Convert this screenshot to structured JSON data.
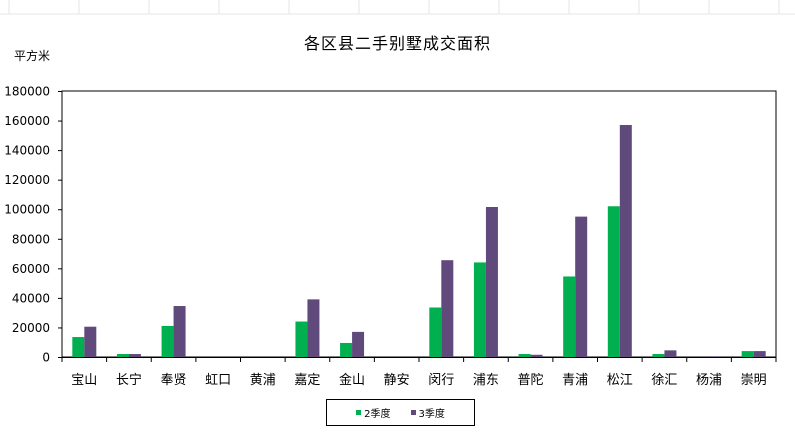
{
  "chart_data": {
    "type": "bar",
    "title": "各区县二手别墅成交面积",
    "ylabel": "平方米",
    "xlabel": "",
    "ylim": [
      0,
      180000
    ],
    "yticks": [
      0,
      20000,
      40000,
      60000,
      80000,
      100000,
      120000,
      140000,
      160000,
      180000
    ],
    "grid": false,
    "legend_position": "bottom",
    "categories": [
      "宝山",
      "长宁",
      "奉贤",
      "虹口",
      "黄浦",
      "嘉定",
      "金山",
      "静安",
      "闵行",
      "浦东",
      "普陀",
      "青浦",
      "松江",
      "徐汇",
      "杨浦",
      "崇明"
    ],
    "series": [
      {
        "name": "2季度",
        "color": "#00b050",
        "values": [
          13500,
          2000,
          21000,
          0,
          0,
          24000,
          9500,
          0,
          33500,
          64000,
          2000,
          54500,
          102000,
          2000,
          0,
          4000
        ]
      },
      {
        "name": "3季度",
        "color": "#604a7b",
        "values": [
          20500,
          2000,
          34500,
          0,
          0,
          39000,
          17000,
          0,
          65500,
          101500,
          1500,
          95000,
          157000,
          4500,
          500,
          4000
        ]
      }
    ]
  }
}
